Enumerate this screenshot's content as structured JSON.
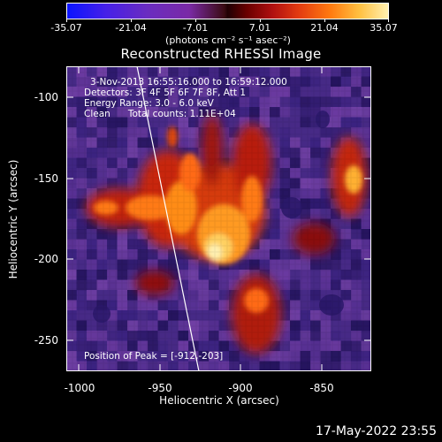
{
  "colorbar": {
    "tick_labels": [
      "-35.07",
      "-21.04",
      "-7.01",
      "7.01",
      "21.04",
      "35.07"
    ],
    "units": "(photons cm⁻² s⁻¹ asec⁻²)"
  },
  "title": "Reconstructed RHESSI Image",
  "annotations": {
    "time_range": "3-Nov-2013 16:55:16.000 to 16:59:12.000",
    "detectors": "Detectors: 3F 4F 5F 6F 7F 8F, Att 1",
    "energy": "Energy Range: 3.0 - 6.0 keV",
    "method": "Clean      Total counts: 1.11E+04",
    "peak": "Position of Peak = [-912,-203]"
  },
  "axes": {
    "xlabel": "Heliocentric X (arcsec)",
    "ylabel": "Heliocentric Y (arcsec)",
    "x_ticks": [
      "-1000",
      "-950",
      "-900",
      "-850"
    ],
    "y_ticks": [
      "-100",
      "-150",
      "-200",
      "-250"
    ]
  },
  "timestamp": "17-May-2022 23:55",
  "colors": {
    "background": "#000000",
    "foreground": "#ffffff"
  }
}
